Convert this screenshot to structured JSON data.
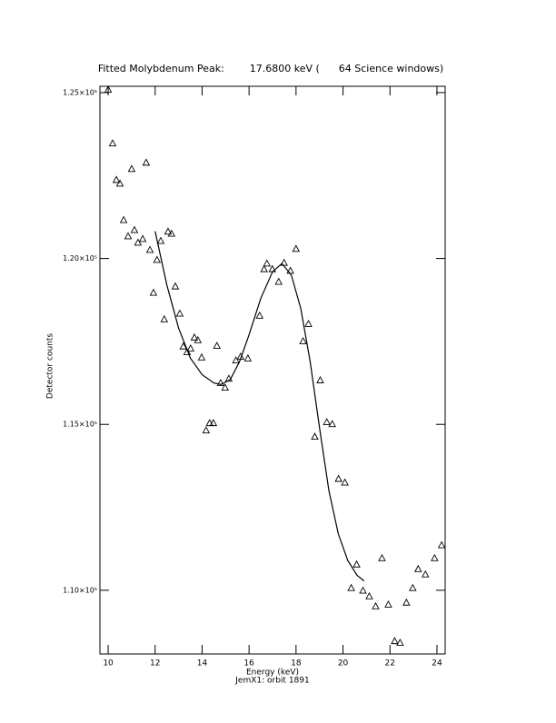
{
  "chart_data": {
    "type": "scatter",
    "title": "Fitted Molybdenum Peak:        17.6800 keV (      64 Science windows)",
    "subtitle": "JemX1: orbit 1891",
    "x_label": "Energy (keV)",
    "y_label": "Detector counts",
    "xlim": [
      9.65,
      24.35
    ],
    "ylim": [
      108080,
      125190
    ],
    "xticks": [
      10,
      12,
      14,
      16,
      18,
      20,
      22,
      24
    ],
    "yticks": [
      {
        "value": 110000,
        "label": "1.10×10⁵"
      },
      {
        "value": 115000,
        "label": "1.15×10⁵"
      },
      {
        "value": 120000,
        "label": "1.20×10⁵"
      },
      {
        "value": 125000,
        "label": "1.25×10⁵"
      }
    ],
    "color": "#000000",
    "points": {
      "x": [
        10.0,
        10.19,
        10.35,
        10.5,
        10.66,
        10.85,
        11.0,
        11.12,
        11.27,
        11.47,
        11.62,
        11.78,
        11.93,
        12.08,
        12.24,
        12.39,
        12.55,
        12.7,
        12.86,
        13.05,
        13.2,
        13.36,
        13.51,
        13.67,
        13.82,
        13.98,
        14.17,
        14.32,
        14.48,
        14.63,
        14.79,
        14.98,
        15.14,
        15.44,
        15.64,
        15.95,
        16.45,
        16.64,
        16.76,
        16.99,
        17.26,
        17.49,
        17.76,
        18.0,
        18.3,
        18.53,
        18.8,
        19.03,
        19.31,
        19.54,
        19.81,
        20.08,
        20.35,
        20.58,
        20.85,
        21.12,
        21.39,
        21.66,
        21.93,
        22.2,
        22.43,
        22.7,
        22.97,
        23.2,
        23.51,
        23.9,
        24.2
      ],
      "values": [
        125080,
        123460,
        122360,
        122250,
        121150,
        120660,
        122690,
        120850,
        120470,
        120580,
        122880,
        120250,
        118960,
        119950,
        120520,
        118160,
        120800,
        120740,
        119150,
        118330,
        117340,
        117170,
        117280,
        117610,
        117530,
        117010,
        114810,
        115030,
        115030,
        117360,
        116240,
        116100,
        116370,
        116920,
        117030,
        116980,
        118270,
        119670,
        119840,
        119670,
        119290,
        119860,
        119620,
        120280,
        117500,
        118020,
        114620,
        116320,
        115060,
        115000,
        113350,
        113240,
        110060,
        110770,
        109980,
        109810,
        109510,
        110960,
        109560,
        108460,
        108410,
        109620,
        110060,
        110630,
        110470,
        110960,
        111350
      ]
    },
    "fit": {
      "x": [
        12.0,
        12.5,
        13.0,
        13.5,
        14.0,
        14.5,
        14.8,
        15.2,
        15.6,
        16.0,
        16.5,
        17.0,
        17.4,
        17.8,
        18.2,
        18.6,
        19.0,
        19.4,
        19.8,
        20.2,
        20.6,
        20.9
      ],
      "values": [
        120820,
        119200,
        117900,
        117000,
        116500,
        116250,
        116200,
        116350,
        116900,
        117700,
        118800,
        119600,
        119850,
        119500,
        118500,
        116900,
        114900,
        113000,
        111700,
        110900,
        110450,
        110280
      ]
    }
  }
}
